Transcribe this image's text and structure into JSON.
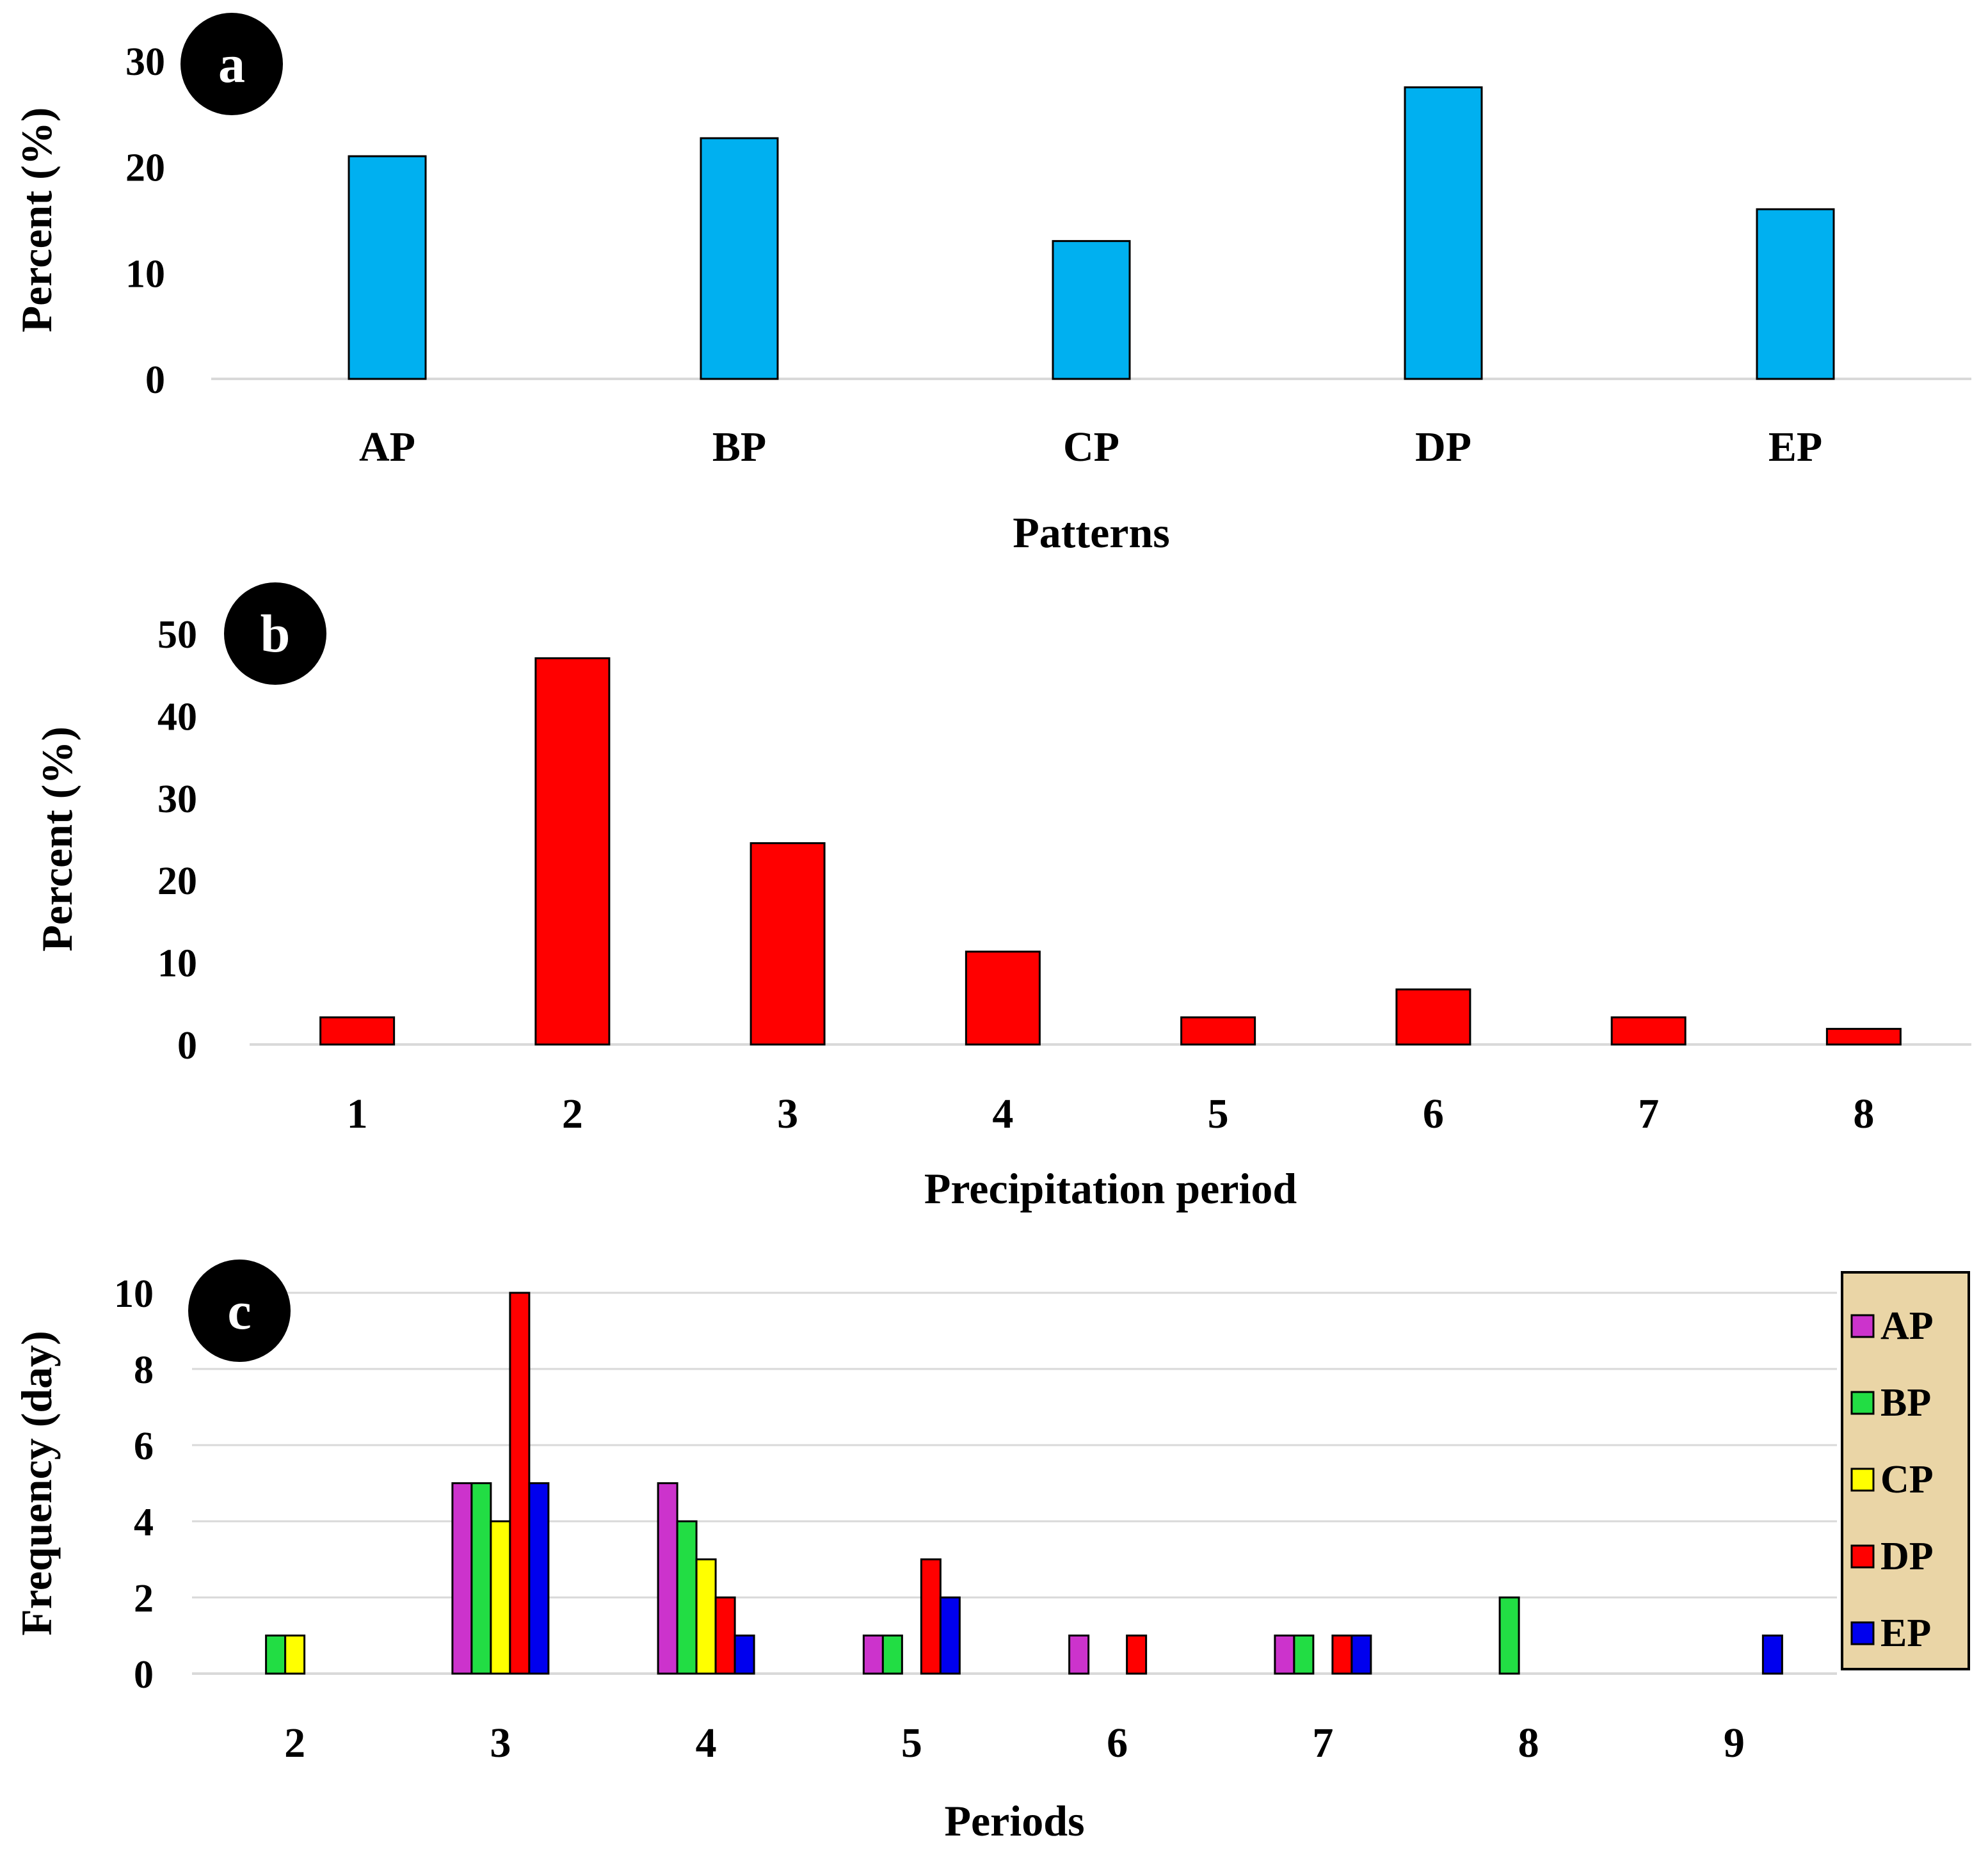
{
  "chart_data": [
    {
      "type": "bar",
      "panel": "a",
      "title": "",
      "xlabel": "Patterns",
      "ylabel": "Percent (%)",
      "categories": [
        "AP",
        "BP",
        "CP",
        "DP",
        "EP"
      ],
      "values": [
        21,
        22.7,
        13,
        27.5,
        16
      ],
      "ylim": [
        0,
        30
      ],
      "yticks": [
        0,
        10,
        20,
        30
      ],
      "grid": false,
      "color": "#00b0f0"
    },
    {
      "type": "bar",
      "panel": "b",
      "title": "",
      "xlabel": "Precipitation period",
      "ylabel": "Percent (%)",
      "categories": [
        "1",
        "2",
        "3",
        "4",
        "5",
        "6",
        "7",
        "8"
      ],
      "values": [
        3.3,
        47,
        24.5,
        11.3,
        3.3,
        6.7,
        3.3,
        1.9
      ],
      "ylim": [
        0,
        50
      ],
      "yticks": [
        0,
        10,
        20,
        30,
        40,
        50
      ],
      "grid": false,
      "color": "#ff0000"
    },
    {
      "type": "bar",
      "panel": "c",
      "title": "",
      "xlabel": "Periods",
      "ylabel": "Frequency (day)",
      "categories": [
        "2",
        "3",
        "4",
        "5",
        "6",
        "7",
        "8",
        "9"
      ],
      "ylim": [
        0,
        10
      ],
      "yticks": [
        0,
        2,
        4,
        6,
        8,
        10
      ],
      "grid": true,
      "legend": "right",
      "series": [
        {
          "name": "AP",
          "color": "#cc33cc",
          "values": [
            0,
            5,
            5,
            1,
            1,
            1,
            0,
            0
          ]
        },
        {
          "name": "BP",
          "color": "#22dd44",
          "values": [
            1,
            5,
            4,
            1,
            0,
            1,
            2,
            0
          ]
        },
        {
          "name": "CP",
          "color": "#ffff00",
          "values": [
            1,
            4,
            3,
            0,
            0,
            0,
            0,
            0
          ]
        },
        {
          "name": "DP",
          "color": "#ff0000",
          "values": [
            0,
            10,
            2,
            3,
            1,
            1,
            0,
            0
          ]
        },
        {
          "name": "EP",
          "color": "#0000ee",
          "values": [
            0,
            5,
            1,
            2,
            0,
            1,
            0,
            1
          ]
        }
      ]
    }
  ]
}
